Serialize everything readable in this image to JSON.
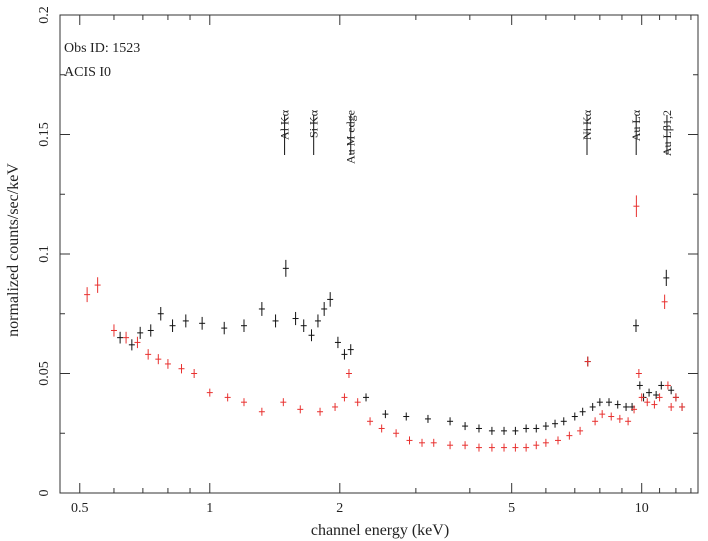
{
  "chart_data": {
    "type": "scatter",
    "xlabel": "channel energy (keV)",
    "ylabel": "normalized counts/sec/keV",
    "x_scale": "log",
    "xlim": [
      0.45,
      13.5
    ],
    "ylim": [
      0,
      0.2
    ],
    "x_ticks": [
      {
        "value": 0.5,
        "label": "0.5"
      },
      {
        "value": 1,
        "label": "1"
      },
      {
        "value": 2,
        "label": "2"
      },
      {
        "value": 5,
        "label": "5"
      },
      {
        "value": 10,
        "label": "10"
      }
    ],
    "y_ticks": [
      {
        "value": 0,
        "label": "0"
      },
      {
        "value": 0.05,
        "label": "0.05"
      },
      {
        "value": 0.1,
        "label": "0.1"
      },
      {
        "value": 0.15,
        "label": "0.15"
      },
      {
        "value": 0.2,
        "label": "0.2"
      }
    ],
    "annotations": [
      "Obs ID: 1523",
      "ACIS I0"
    ],
    "line_markers": [
      {
        "label": "Al Kα",
        "x": 1.49
      },
      {
        "label": "Si Kα",
        "x": 1.74
      },
      {
        "label": "Au M edge",
        "x": 2.12
      },
      {
        "label": "Ni Kα",
        "x": 7.47
      },
      {
        "label": "Au Lα",
        "x": 9.71
      },
      {
        "label": "Au Lβ1,2",
        "x": 11.44
      }
    ],
    "colors": {
      "black": "#111111",
      "red": "#e8312f"
    },
    "series": [
      {
        "color": "black",
        "x": [
          0.62,
          0.66,
          0.69,
          0.73,
          0.77,
          0.82,
          0.88,
          0.96,
          1.08,
          1.2,
          1.32,
          1.42,
          1.5,
          1.58,
          1.65,
          1.72,
          1.78,
          1.84,
          1.9,
          1.98,
          2.05,
          2.12,
          2.3,
          2.55,
          2.85,
          3.2,
          3.6,
          3.9,
          4.2,
          4.5,
          4.8,
          5.1,
          5.4,
          5.7,
          6.0,
          6.3,
          6.6,
          7.0,
          7.3,
          7.5,
          7.7,
          8.0,
          8.4,
          8.8,
          9.2,
          9.5,
          9.7,
          9.9,
          10.1,
          10.4,
          10.8,
          11.1,
          11.4,
          11.7,
          12.0,
          12.4
        ],
        "y": [
          0.065,
          0.062,
          0.067,
          0.068,
          0.075,
          0.07,
          0.072,
          0.071,
          0.069,
          0.07,
          0.077,
          0.072,
          0.094,
          0.073,
          0.07,
          0.066,
          0.072,
          0.077,
          0.081,
          0.063,
          0.058,
          0.06,
          0.04,
          0.033,
          0.032,
          0.031,
          0.03,
          0.028,
          0.027,
          0.026,
          0.026,
          0.026,
          0.027,
          0.027,
          0.028,
          0.029,
          0.03,
          0.032,
          0.034,
          0.055,
          0.036,
          0.038,
          0.038,
          0.037,
          0.036,
          0.036,
          0.07,
          0.045,
          0.04,
          0.042,
          0.041,
          0.045,
          0.09,
          0.043,
          0.04,
          0.036
        ]
      },
      {
        "color": "red",
        "x": [
          0.52,
          0.55,
          0.6,
          0.64,
          0.68,
          0.72,
          0.76,
          0.8,
          0.86,
          0.92,
          1.0,
          1.1,
          1.2,
          1.32,
          1.48,
          1.62,
          1.8,
          1.95,
          2.05,
          2.1,
          2.2,
          2.35,
          2.5,
          2.7,
          2.9,
          3.1,
          3.3,
          3.6,
          3.9,
          4.2,
          4.5,
          4.8,
          5.1,
          5.4,
          5.7,
          6.0,
          6.4,
          6.8,
          7.2,
          7.5,
          7.8,
          8.1,
          8.5,
          8.9,
          9.3,
          9.6,
          9.72,
          9.85,
          10.0,
          10.3,
          10.7,
          11.0,
          11.3,
          11.5,
          11.7,
          12.0,
          12.4
        ],
        "y": [
          0.083,
          0.087,
          0.068,
          0.065,
          0.063,
          0.058,
          0.056,
          0.054,
          0.052,
          0.05,
          0.042,
          0.04,
          0.038,
          0.034,
          0.038,
          0.035,
          0.034,
          0.036,
          0.04,
          0.05,
          0.038,
          0.03,
          0.027,
          0.025,
          0.022,
          0.021,
          0.021,
          0.02,
          0.02,
          0.019,
          0.019,
          0.019,
          0.019,
          0.019,
          0.02,
          0.021,
          0.022,
          0.024,
          0.026,
          0.055,
          0.03,
          0.033,
          0.032,
          0.031,
          0.03,
          0.035,
          0.12,
          0.05,
          0.04,
          0.038,
          0.037,
          0.04,
          0.08,
          0.045,
          0.036,
          0.04,
          0.036
        ]
      }
    ]
  }
}
